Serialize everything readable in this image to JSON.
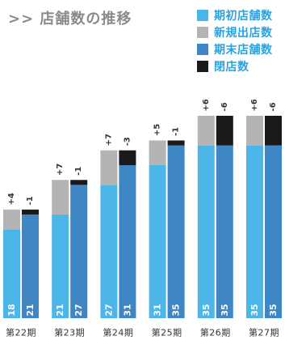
{
  "title": ">> 店舗数の推移",
  "legend": [
    {
      "label": "期初店舗数",
      "color": "#4db6e8",
      "text_color": "#29a3df"
    },
    {
      "label": "新規出店数",
      "color": "#b4b4b6",
      "text_color": "#29a3df"
    },
    {
      "label": "期末店舗数",
      "color": "#3f86c4",
      "text_color": "#29a3df"
    },
    {
      "label": "閉店数",
      "color": "#1a1a1a",
      "text_color": "#29a3df"
    }
  ],
  "chart_data": {
    "type": "bar",
    "categories": [
      "第22期",
      "第23期",
      "第24期",
      "第25期",
      "第26期",
      "第27期"
    ],
    "series": [
      {
        "name": "期初店舗数",
        "values": [
          18,
          21,
          27,
          31,
          35,
          35
        ]
      },
      {
        "name": "新規出店数",
        "values": [
          4,
          7,
          7,
          5,
          6,
          6
        ]
      },
      {
        "name": "期末店舗数",
        "values": [
          21,
          27,
          31,
          35,
          35,
          35
        ]
      },
      {
        "name": "閉店数",
        "values": [
          1,
          1,
          3,
          1,
          6,
          6
        ]
      }
    ],
    "bar_labels": {
      "opening": [
        "18",
        "21",
        "27",
        "31",
        "35",
        "35"
      ],
      "ending": [
        "21",
        "27",
        "31",
        "35",
        "35",
        "35"
      ],
      "new": [
        "+4",
        "+7",
        "+7",
        "+5",
        "+6",
        "+6"
      ],
      "closed": [
        "-1",
        "-1",
        "-3",
        "-1",
        "-6",
        "-6"
      ]
    },
    "ylim": [
      0,
      41
    ],
    "grid": false,
    "legend_position": "top-right"
  }
}
